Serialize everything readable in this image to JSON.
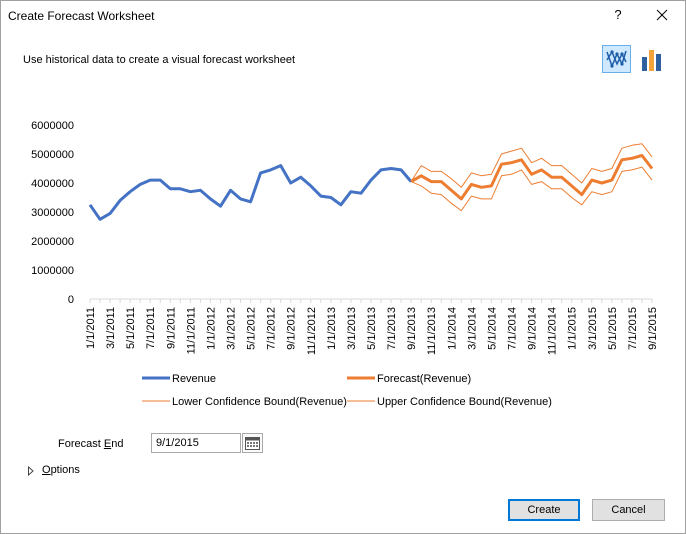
{
  "window": {
    "title": "Create Forecast Worksheet",
    "help_label": "?",
    "close_icon": "close-icon"
  },
  "header": {
    "subtitle": "Use historical data to create a visual forecast worksheet",
    "chart_type_buttons": [
      {
        "icon": "line-chart-icon",
        "selected": true
      },
      {
        "icon": "column-chart-icon",
        "selected": false
      }
    ]
  },
  "chart_data": {
    "type": "line",
    "x": [
      "1/1/2011",
      "2/1/2011",
      "3/1/2011",
      "4/1/2011",
      "5/1/2011",
      "6/1/2011",
      "7/1/2011",
      "8/1/2011",
      "9/1/2011",
      "10/1/2011",
      "11/1/2011",
      "12/1/2011",
      "1/1/2012",
      "2/1/2012",
      "3/1/2012",
      "4/1/2012",
      "5/1/2012",
      "6/1/2012",
      "7/1/2012",
      "8/1/2012",
      "9/1/2012",
      "10/1/2012",
      "11/1/2012",
      "12/1/2012",
      "1/1/2013",
      "2/1/2013",
      "3/1/2013",
      "4/1/2013",
      "5/1/2013",
      "6/1/2013",
      "7/1/2013",
      "8/1/2013",
      "9/1/2013",
      "10/1/2013",
      "11/1/2013",
      "12/1/2013",
      "1/1/2014",
      "2/1/2014",
      "3/1/2014",
      "4/1/2014",
      "5/1/2014",
      "6/1/2014",
      "7/1/2014",
      "8/1/2014",
      "9/1/2014",
      "10/1/2014",
      "11/1/2014",
      "12/1/2014",
      "1/1/2015",
      "2/1/2015",
      "3/1/2015",
      "4/1/2015",
      "5/1/2015",
      "6/1/2015",
      "7/1/2015",
      "8/1/2015",
      "9/1/2015"
    ],
    "x_tick_labels": [
      "1/1/2011",
      "3/1/2011",
      "5/1/2011",
      "7/1/2011",
      "9/1/2011",
      "11/1/2011",
      "1/1/2012",
      "3/1/2012",
      "5/1/2012",
      "7/1/2012",
      "9/1/2012",
      "11/1/2012",
      "1/1/2013",
      "3/1/2013",
      "5/1/2013",
      "7/1/2013",
      "9/1/2013",
      "11/1/2013",
      "1/1/2014",
      "3/1/2014",
      "5/1/2014",
      "7/1/2014",
      "9/1/2014",
      "11/1/2014",
      "1/1/2015",
      "3/1/2015",
      "5/1/2015",
      "7/1/2015",
      "9/1/2015"
    ],
    "y_tick_labels": [
      "0",
      "1000000",
      "2000000",
      "3000000",
      "4000000",
      "5000000",
      "6000000"
    ],
    "ylim": [
      0,
      6000000
    ],
    "series": [
      {
        "name": "Revenue",
        "color": "#4472c4",
        "values": [
          3250000,
          2750000,
          2950000,
          3400000,
          3700000,
          3950000,
          4100000,
          4100000,
          3800000,
          3800000,
          3700000,
          3750000,
          3450000,
          3200000,
          3750000,
          3450000,
          3350000,
          4350000,
          4450000,
          4600000,
          4000000,
          4200000,
          3900000,
          3550000,
          3500000,
          3250000,
          3700000,
          3650000,
          4100000,
          4450000,
          4500000,
          4450000,
          4050000,
          null,
          null,
          null,
          null,
          null,
          null,
          null,
          null,
          null,
          null,
          null,
          null,
          null,
          null,
          null,
          null,
          null,
          null,
          null,
          null,
          null,
          null,
          null,
          null
        ]
      },
      {
        "name": "Forecast(Revenue)",
        "color": "#ed7d31",
        "values": [
          null,
          null,
          null,
          null,
          null,
          null,
          null,
          null,
          null,
          null,
          null,
          null,
          null,
          null,
          null,
          null,
          null,
          null,
          null,
          null,
          null,
          null,
          null,
          null,
          null,
          null,
          null,
          null,
          null,
          null,
          null,
          null,
          4050000,
          4250000,
          4050000,
          4050000,
          3750000,
          3450000,
          3950000,
          3850000,
          3900000,
          4650000,
          4700000,
          4800000,
          4300000,
          4450000,
          4200000,
          4200000,
          3900000,
          3600000,
          4100000,
          4000000,
          4100000,
          4800000,
          4850000,
          4950000,
          4500000
        ]
      },
      {
        "name": "Lower Confidence Bound(Revenue)",
        "color": "#ed7d31",
        "values": [
          null,
          null,
          null,
          null,
          null,
          null,
          null,
          null,
          null,
          null,
          null,
          null,
          null,
          null,
          null,
          null,
          null,
          null,
          null,
          null,
          null,
          null,
          null,
          null,
          null,
          null,
          null,
          null,
          null,
          null,
          null,
          null,
          4050000,
          3900000,
          3650000,
          3600000,
          3300000,
          3050000,
          3550000,
          3450000,
          3450000,
          4250000,
          4300000,
          4450000,
          3950000,
          4050000,
          3800000,
          3800000,
          3500000,
          3250000,
          3700000,
          3600000,
          3700000,
          4400000,
          4450000,
          4550000,
          4100000
        ]
      },
      {
        "name": "Upper Confidence Bound(Revenue)",
        "color": "#ed7d31",
        "values": [
          null,
          null,
          null,
          null,
          null,
          null,
          null,
          null,
          null,
          null,
          null,
          null,
          null,
          null,
          null,
          null,
          null,
          null,
          null,
          null,
          null,
          null,
          null,
          null,
          null,
          null,
          null,
          null,
          null,
          null,
          null,
          null,
          4050000,
          4600000,
          4400000,
          4400000,
          4150000,
          3850000,
          4350000,
          4250000,
          4300000,
          5000000,
          5100000,
          5200000,
          4700000,
          4850000,
          4600000,
          4600000,
          4300000,
          4000000,
          4500000,
          4400000,
          4500000,
          5200000,
          5300000,
          5350000,
          4900000
        ]
      }
    ],
    "legend_placement": "bottom",
    "grid": false
  },
  "forecast_end": {
    "label_pre": "Forecast ",
    "label_underline": "E",
    "label_post": "nd",
    "value": "9/1/2015",
    "calendar_icon": "calendar-icon"
  },
  "options": {
    "label_underline": "O",
    "label_post": "ptions",
    "expand_icon": "triangle-right-icon"
  },
  "buttons": {
    "create": "Create",
    "cancel": "Cancel"
  }
}
